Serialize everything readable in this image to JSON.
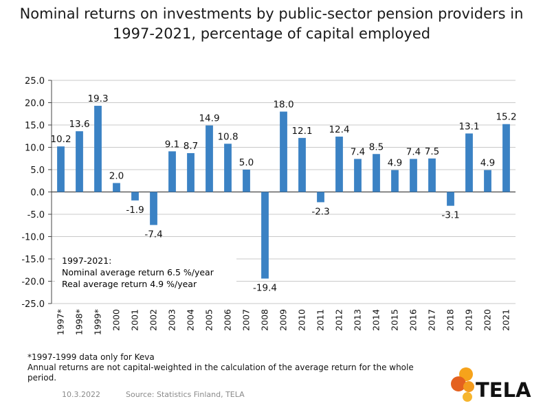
{
  "title_lines": [
    "Nominal returns on investments by public-sector pension providers in",
    "1997-2021, percentage of capital employed"
  ],
  "chart_data": {
    "type": "bar",
    "title": "Nominal returns on investments by public-sector pension providers in 1997-2021, percentage of capital employed",
    "categories": [
      "1997*",
      "1998*",
      "1999*",
      "2000",
      "2001",
      "2002",
      "2003",
      "2004",
      "2005",
      "2006",
      "2007",
      "2008",
      "2009",
      "2010",
      "2011",
      "2012",
      "2013",
      "2014",
      "2015",
      "2016",
      "2017",
      "2018",
      "2019",
      "2020",
      "2021"
    ],
    "values": [
      10.2,
      13.6,
      19.3,
      2.0,
      -1.9,
      -7.4,
      9.1,
      8.7,
      14.9,
      10.8,
      5.0,
      -19.4,
      18.0,
      12.1,
      -2.3,
      12.4,
      7.4,
      8.5,
      4.9,
      7.4,
      7.5,
      -3.1,
      13.1,
      4.9,
      15.2
    ],
    "data_labels": [
      "10.2",
      "13.6",
      "19.3",
      "2.0",
      "-1.9",
      "-7.4",
      "9.1",
      "8.7",
      "14.9",
      "10.8",
      "5.0",
      "-19.4",
      "18.0",
      "12.1",
      "-2.3",
      "12.4",
      "7.4",
      "8.5",
      "4.9",
      "7.4",
      "7.5",
      "-3.1",
      "13.1",
      "4.9",
      "15.2"
    ],
    "y_ticks": [
      "25.0",
      "20.0",
      "15.0",
      "10.0",
      "5.0",
      "0.0",
      "-5.0",
      "-10.0",
      "-15.0",
      "-20.0",
      "-25.0"
    ],
    "ylim": [
      -25,
      25
    ],
    "grid": true,
    "bar_color": "#3b82c4",
    "annotation": [
      "1997-2021:",
      "Nominal average return 6.5 %/year",
      "Real average return 4.9 %/year"
    ]
  },
  "notes": [
    "*1997-1999  data only for Keva",
    "Annual returns are not capital-weighted in the calculation of the average return for the whole",
    "period."
  ],
  "footer": {
    "date": "10.3.2022",
    "source": "Source: Statistics Finland, TELA"
  },
  "logo": {
    "text": "TELA",
    "colors": [
      "#f6a31b",
      "#e4611f",
      "#f39a1d",
      "#f6b52e"
    ]
  }
}
